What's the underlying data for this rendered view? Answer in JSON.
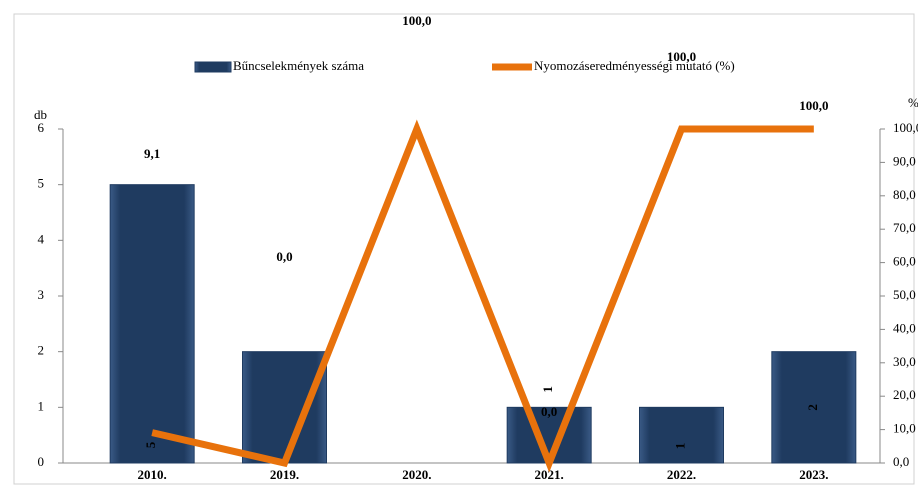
{
  "chart_data": {
    "type": "bar",
    "categories": [
      "2010.",
      "2019.",
      "2020.",
      "2021.",
      "2022.",
      "2023."
    ],
    "series": [
      {
        "name": "Bűncselekmények száma",
        "type": "bar",
        "color": "#1f3b60",
        "values": [
          5,
          2,
          0,
          1,
          1,
          2
        ],
        "value_labels": [
          "5",
          null,
          null,
          "1",
          "1",
          "2"
        ]
      },
      {
        "name": "Nyomozáseredményességi mutató (%)",
        "type": "line",
        "axis": "y2",
        "color": "#e8720c",
        "values": [
          9.1,
          0,
          100,
          0,
          100,
          100
        ],
        "value_labels": [
          "9,1",
          "0,0",
          "100,0",
          "0,0",
          "100,0",
          "100,0"
        ]
      }
    ],
    "y_label": "db",
    "y2_label": "%",
    "ylim": [
      0,
      6
    ],
    "yticks": [
      0,
      1,
      2,
      3,
      4,
      5,
      6
    ],
    "y2lim": [
      0,
      100
    ],
    "y2ticks": [
      {
        "value": 0,
        "label": "0,0"
      },
      {
        "value": 10,
        "label": "10,0"
      },
      {
        "value": 20,
        "label": "20,0"
      },
      {
        "value": 30,
        "label": "30,0"
      },
      {
        "value": 40,
        "label": "40,0"
      },
      {
        "value": 50,
        "label": "50,0"
      },
      {
        "value": 60,
        "label": "60,0"
      },
      {
        "value": 70,
        "label": "70,0"
      },
      {
        "value": 80,
        "label": "80,0"
      },
      {
        "value": 90,
        "label": "90,0"
      },
      {
        "value": 100,
        "label": "100,0"
      }
    ]
  }
}
